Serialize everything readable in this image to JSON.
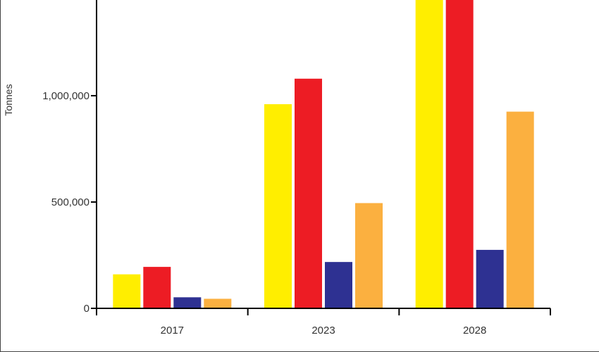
{
  "chart_data": {
    "type": "bar",
    "title": "",
    "xlabel": "",
    "ylabel": "Tonnes",
    "categories": [
      "2017",
      "2023",
      "2028"
    ],
    "series": [
      {
        "values": [
          160000,
          960000,
          1500000
        ],
        "color": "#ffee00"
      },
      {
        "values": [
          195000,
          1080000,
          1500000
        ],
        "color": "#ed1c24"
      },
      {
        "values": [
          52000,
          218000,
          275000
        ],
        "color": "#2e3192"
      },
      {
        "values": [
          45000,
          495000,
          925000
        ],
        "color": "#fbb040"
      }
    ],
    "yticks": [
      {
        "value": 0,
        "label": "0"
      },
      {
        "value": 500000,
        "label": "500,000"
      },
      {
        "value": 1000000,
        "label": "1,000,000"
      }
    ],
    "ylim": [
      0,
      1450000
    ],
    "grid": false,
    "legend": "none"
  }
}
